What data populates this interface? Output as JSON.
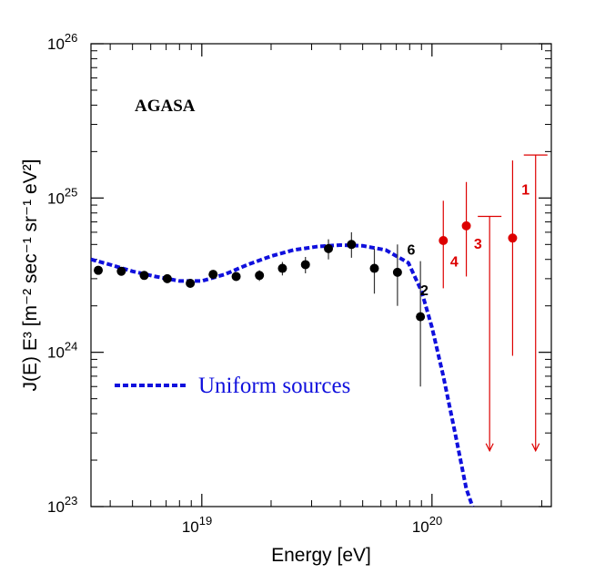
{
  "chart_data": {
    "type": "scatter",
    "title": "",
    "xlabel": "Energy [eV]",
    "ylabel": "J(E) E³ [m⁻² sec⁻¹ sr⁻¹ eV²]",
    "xscale": "log",
    "yscale": "log",
    "xlim": [
      3.3e+18,
      3.3e+20
    ],
    "ylim": [
      1e+23,
      1e+26
    ],
    "x_ticks": [
      {
        "value": 1e+19,
        "base": "10",
        "exp": "19"
      },
      {
        "value": 1e+20,
        "base": "10",
        "exp": "20"
      }
    ],
    "y_ticks": [
      {
        "value": 1e+23,
        "base": "10",
        "exp": "23"
      },
      {
        "value": 1e+24,
        "base": "10",
        "exp": "24"
      },
      {
        "value": 1e+25,
        "base": "10",
        "exp": "25"
      },
      {
        "value": 1e+26,
        "base": "10",
        "exp": "26"
      }
    ],
    "annotation": "AGASA",
    "series": [
      {
        "marker": "circle",
        "color": "#000000",
        "points": [
          {
            "x": 3.55e+18,
            "y": 3.4e+24,
            "ylo": 3.4e+24,
            "yhi": 3.4e+24
          },
          {
            "x": 4.47e+18,
            "y": 3.35e+24,
            "ylo": 3.35e+24,
            "yhi": 3.35e+24
          },
          {
            "x": 5.62e+18,
            "y": 3.15e+24,
            "ylo": 3.15e+24,
            "yhi": 3.15e+24
          },
          {
            "x": 7.08e+18,
            "y": 3e+24,
            "ylo": 3e+24,
            "yhi": 3e+24
          },
          {
            "x": 8.91e+18,
            "y": 2.8e+24,
            "ylo": 2.8e+24,
            "yhi": 2.8e+24
          },
          {
            "x": 1.12e+19,
            "y": 3.2e+24,
            "ylo": 3.2e+24,
            "yhi": 3.2e+24
          },
          {
            "x": 1.41e+19,
            "y": 3.1e+24,
            "ylo": 3.1e+24,
            "yhi": 3.1e+24
          },
          {
            "x": 1.78e+19,
            "y": 3.15e+24,
            "ylo": 2.9e+24,
            "yhi": 3.4e+24
          },
          {
            "x": 2.24e+19,
            "y": 3.5e+24,
            "ylo": 3.15e+24,
            "yhi": 3.85e+24
          },
          {
            "x": 2.82e+19,
            "y": 3.7e+24,
            "ylo": 3.25e+24,
            "yhi": 4.15e+24
          },
          {
            "x": 3.55e+19,
            "y": 4.7e+24,
            "ylo": 4e+24,
            "yhi": 5.4e+24
          },
          {
            "x": 4.47e+19,
            "y": 5e+24,
            "ylo": 4.1e+24,
            "yhi": 6e+24
          },
          {
            "x": 5.62e+19,
            "y": 3.5e+24,
            "ylo": 2.4e+24,
            "yhi": 4.7e+24
          },
          {
            "x": 7.08e+19,
            "y": 3.3e+24,
            "ylo": 2e+24,
            "yhi": 5e+24
          },
          {
            "x": 8.91e+19,
            "y": 1.7e+24,
            "ylo": 6e+23,
            "yhi": 3.9e+24
          }
        ]
      },
      {
        "marker": "circle",
        "color": "#dd0000",
        "points": [
          {
            "x": 1.12e+20,
            "y": 5.3e+24,
            "ylo": 2.6e+24,
            "yhi": 9.6e+24
          },
          {
            "x": 1.41e+20,
            "y": 6.6e+24,
            "ylo": 3.1e+24,
            "yhi": 1.27e+25
          },
          {
            "x": 2.24e+20,
            "y": 5.5e+24,
            "ylo": 9.5e+23,
            "yhi": 1.75e+25
          }
        ]
      },
      {
        "type": "upper_limit",
        "color": "#dd0000",
        "points": [
          {
            "x": 1.78e+20,
            "y": 7.6e+24,
            "y_arrow_end": 2.3e+23
          },
          {
            "x": 2.82e+20,
            "y": 1.9e+25,
            "y_arrow_end": 2.3e+23
          }
        ]
      }
    ],
    "event_labels": [
      {
        "text": "6",
        "x": 7.8e+19,
        "y": 4.3e+24,
        "color": "#000000"
      },
      {
        "text": "2",
        "x": 8.9e+19,
        "y": 2.35e+24,
        "color": "#000000"
      },
      {
        "text": "4",
        "x": 1.2e+20,
        "y": 3.6e+24,
        "color": "#dd0000"
      },
      {
        "text": "3",
        "x": 1.52e+20,
        "y": 4.7e+24,
        "color": "#dd0000"
      },
      {
        "text": "1",
        "x": 2.45e+20,
        "y": 1.05e+25,
        "color": "#dd0000"
      }
    ],
    "model_curve": {
      "name": "Uniform sources",
      "color": "#1010dd",
      "style": "dashed",
      "points": [
        [
          3.3e+18,
          4e+24
        ],
        [
          4e+18,
          3.7e+24
        ],
        [
          5e+18,
          3.35e+24
        ],
        [
          6.3e+18,
          3.1e+24
        ],
        [
          8e+18,
          2.9e+24
        ],
        [
          1e+19,
          2.9e+24
        ],
        [
          1.26e+19,
          3.2e+24
        ],
        [
          1.58e+19,
          3.7e+24
        ],
        [
          2e+19,
          4.2e+24
        ],
        [
          2.5e+19,
          4.6e+24
        ],
        [
          3.2e+19,
          4.85e+24
        ],
        [
          4e+19,
          4.95e+24
        ],
        [
          5e+19,
          4.9e+24
        ],
        [
          6.3e+19,
          4.6e+24
        ],
        [
          7.9e+19,
          3.8e+24
        ],
        [
          9e+19,
          2.5e+24
        ],
        [
          1e+20,
          1.45e+24
        ],
        [
          1.12e+20,
          7e+23
        ],
        [
          1.26e+20,
          3e+23
        ],
        [
          1.41e+20,
          1.3e+23
        ],
        [
          1.5e+20,
          1e+23
        ]
      ]
    }
  }
}
